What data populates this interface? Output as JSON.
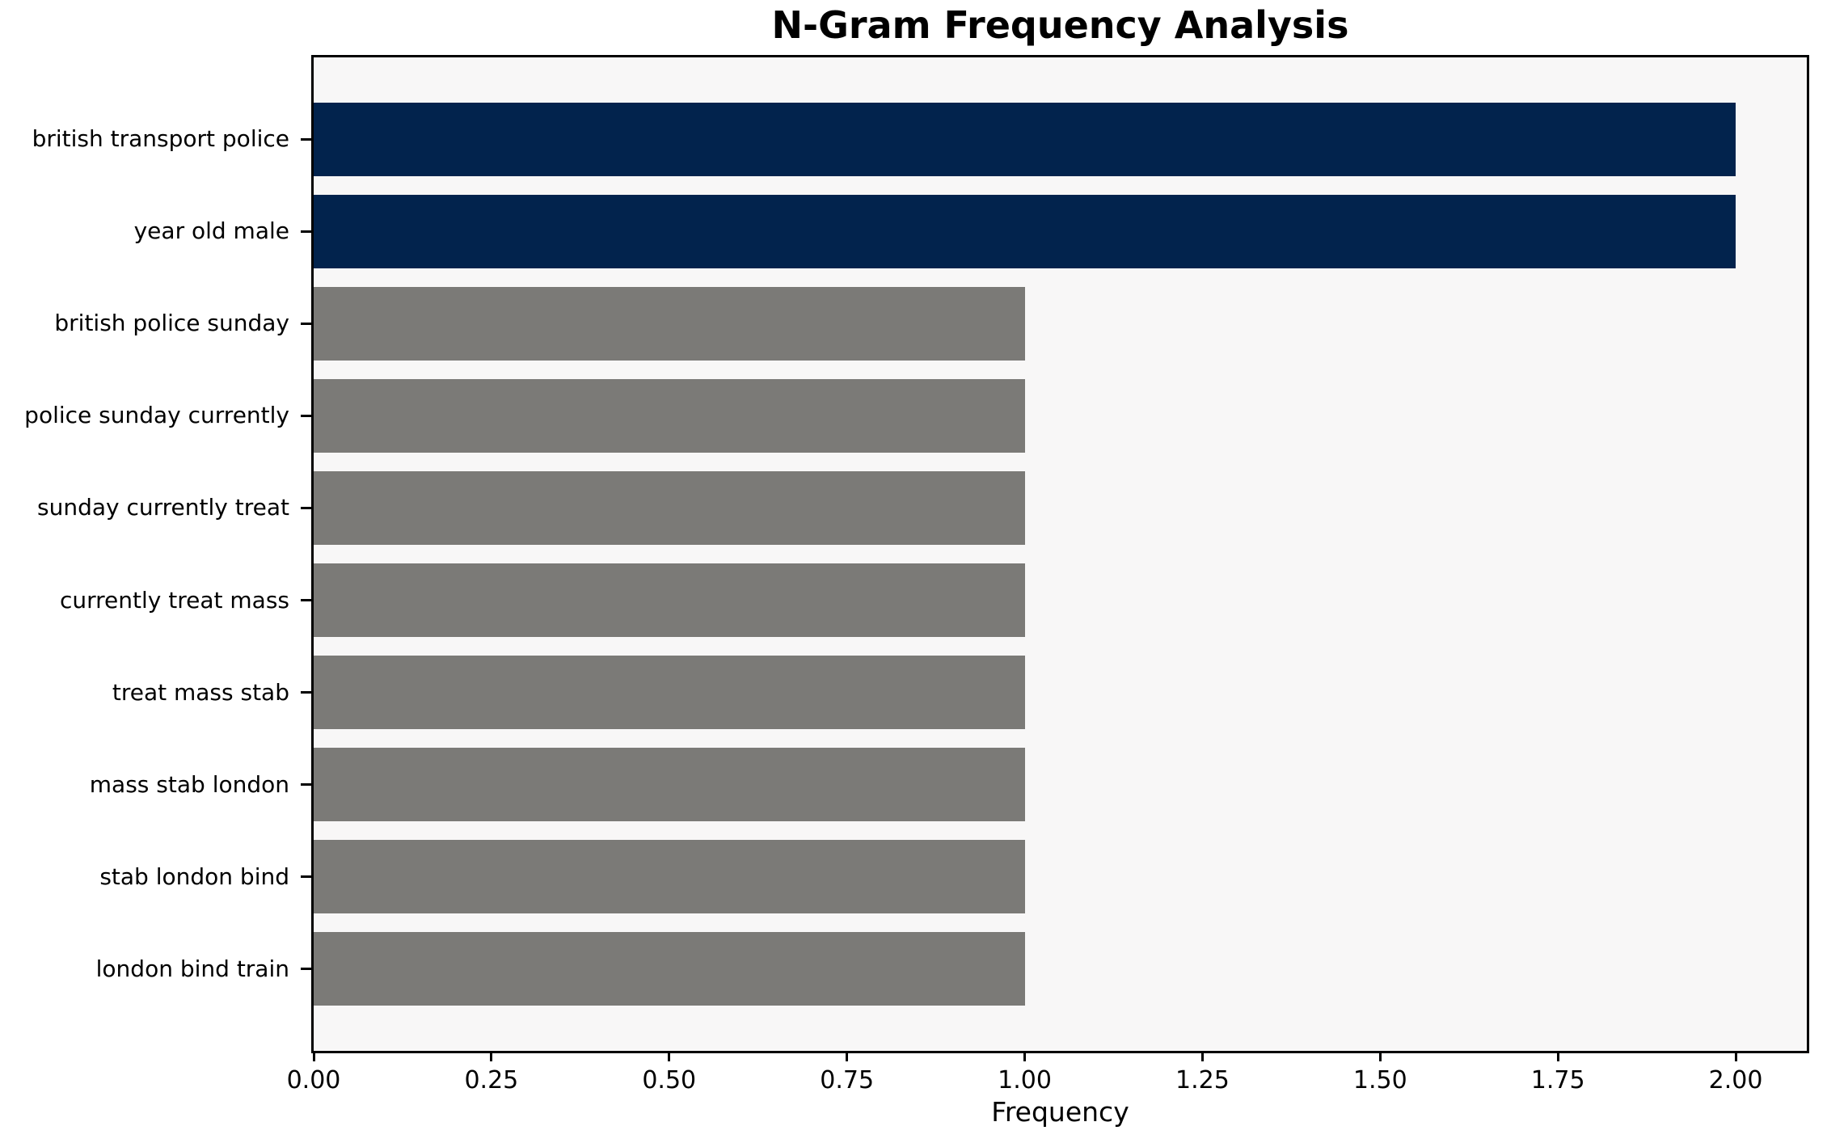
{
  "page": {
    "background_color": "#ffffff"
  },
  "chart_data": {
    "type": "bar",
    "orientation": "horizontal",
    "title": "N-Gram Frequency Analysis",
    "xlabel": "Frequency",
    "ylabel": "",
    "categories": [
      "british transport police",
      "year old male",
      "british police sunday",
      "police sunday currently",
      "sunday currently treat",
      "currently treat mass",
      "treat mass stab",
      "mass stab london",
      "stab london bind",
      "london bind train"
    ],
    "values": [
      2,
      2,
      1,
      1,
      1,
      1,
      1,
      1,
      1,
      1
    ],
    "bar_colors": [
      "#02234d",
      "#02234d",
      "#7b7a77",
      "#7b7a77",
      "#7b7a77",
      "#7b7a77",
      "#7b7a77",
      "#7b7a77",
      "#7b7a77",
      "#7b7a77"
    ],
    "highlight_color": "#02234d",
    "default_color": "#7b7a77",
    "xlim": [
      0,
      2.1
    ],
    "xtick_values": [
      0,
      0.25,
      0.5,
      0.75,
      1.0,
      1.25,
      1.5,
      1.75,
      2.0
    ],
    "xtick_labels": [
      "0.00",
      "0.25",
      "0.50",
      "0.75",
      "1.00",
      "1.25",
      "1.50",
      "1.75",
      "2.00"
    ],
    "grid": false,
    "legend_position": "none",
    "plot_background": "#f8f7f7",
    "axis_color": "#000000",
    "text_color": "#000000"
  }
}
